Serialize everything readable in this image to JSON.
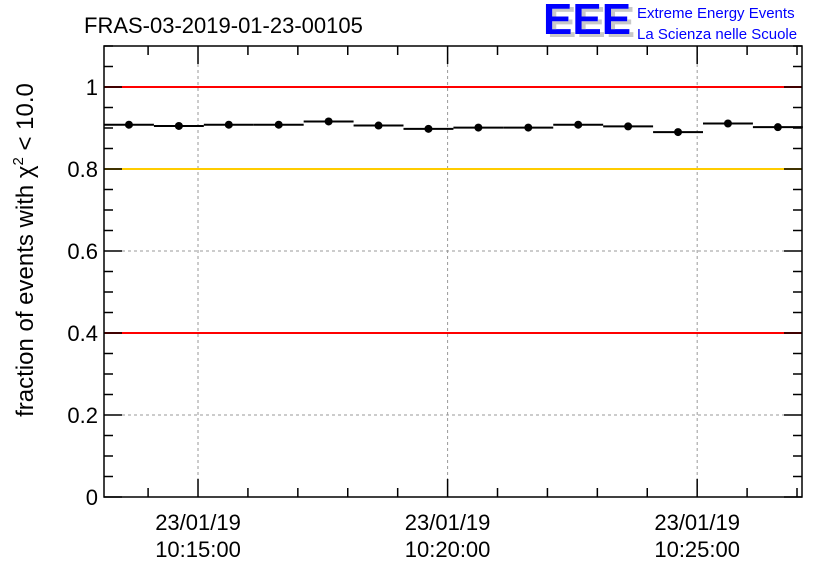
{
  "chart_data": {
    "type": "scatter",
    "title": "FRAS-03-2019-01-23-00105",
    "ylabel_prefix": "fraction of events with ",
    "ylabel_chi": "χ",
    "ylabel_sup": "2",
    "ylabel_suffix": " < 10.0",
    "xlabel": "",
    "x_unit": "seconds since 10:00:00",
    "xlim": [
      787,
      1626
    ],
    "ylim": [
      0,
      1.1
    ],
    "grid": true,
    "bin_width": 60,
    "x": [
      817,
      877,
      937,
      997,
      1057,
      1117,
      1177,
      1237,
      1297,
      1357,
      1417,
      1477,
      1537,
      1597
    ],
    "values": [
      0.908,
      0.905,
      0.908,
      0.908,
      0.916,
      0.906,
      0.898,
      0.901,
      0.901,
      0.908,
      0.904,
      0.89,
      0.911,
      0.902
    ],
    "yticks": [
      0,
      0.2,
      0.4,
      0.6,
      0.8,
      1
    ],
    "ytick_labels": [
      "0",
      "0.2",
      "0.4",
      "0.6",
      "0.8",
      "1"
    ],
    "xticks": [
      {
        "value": 900,
        "date": "23/01/19",
        "time": "10:15:00"
      },
      {
        "value": 1200,
        "date": "23/01/19",
        "time": "10:20:00"
      },
      {
        "value": 1500,
        "date": "23/01/19",
        "time": "10:25:00"
      }
    ],
    "reference_lines": [
      {
        "value": 1.0,
        "color": "#ff0000"
      },
      {
        "value": 0.8,
        "color": "#ffcc00"
      },
      {
        "value": 0.4,
        "color": "#ff0000"
      }
    ]
  },
  "logo": {
    "letters": "EEE",
    "line1": "Extreme Energy Events",
    "line2": "La Scienza nelle Scuole",
    "color": "#0000ff"
  }
}
